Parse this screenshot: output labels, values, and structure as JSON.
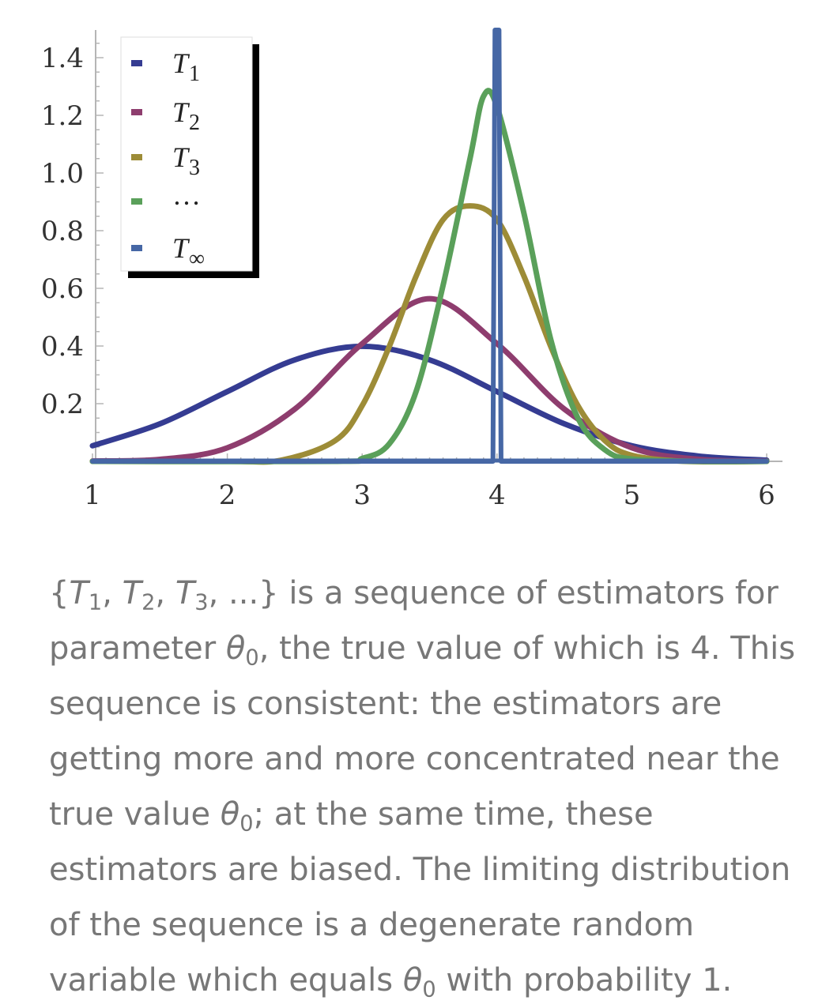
{
  "chart_data": {
    "type": "line",
    "xlim": [
      1,
      6
    ],
    "ylim": [
      0,
      1.5
    ],
    "x_ticks": [
      "1",
      "2",
      "3",
      "4",
      "5",
      "6"
    ],
    "y_ticks": [
      "0.2",
      "0.4",
      "0.6",
      "0.8",
      "1.0",
      "1.2",
      "1.4"
    ],
    "grid": false,
    "legend_position": "top-left",
    "series": [
      {
        "name": "T1",
        "legend": {
          "main": "T",
          "sub": "1"
        },
        "color": "#353c92",
        "x": [
          1.0,
          1.5,
          2.0,
          2.5,
          3.0,
          3.5,
          4.0,
          4.5,
          5.0,
          5.5,
          6.0
        ],
        "y": [
          0.054,
          0.13,
          0.242,
          0.352,
          0.399,
          0.352,
          0.242,
          0.13,
          0.054,
          0.018,
          0.004
        ]
      },
      {
        "name": "T2",
        "legend": {
          "main": "T",
          "sub": "2"
        },
        "color": "#8e3d6e",
        "x": [
          1.0,
          1.5,
          2.0,
          2.5,
          3.0,
          3.5,
          4.0,
          4.5,
          5.0,
          5.5,
          6.0
        ],
        "y": [
          0.001,
          0.007,
          0.047,
          0.181,
          0.408,
          0.564,
          0.408,
          0.181,
          0.047,
          0.007,
          0.001
        ]
      },
      {
        "name": "T3",
        "legend": {
          "main": "T",
          "sub": "3"
        },
        "color": "#9d8c37",
        "x": [
          2.0,
          2.4,
          2.8,
          3.0,
          3.2,
          3.4,
          3.6,
          3.8,
          4.0,
          4.2,
          4.4,
          4.6,
          4.8,
          5.0,
          5.4,
          6.0
        ],
        "y": [
          0.0,
          0.004,
          0.072,
          0.193,
          0.397,
          0.642,
          0.838,
          0.886,
          0.838,
          0.642,
          0.397,
          0.193,
          0.072,
          0.021,
          0.0,
          0.0
        ],
        "peak": {
          "x": 3.8,
          "y": 0.886
        }
      },
      {
        "name": "…",
        "legend": {
          "main": "…",
          "sub": ""
        },
        "color": "#5aa05a",
        "x": [
          2.8,
          3.0,
          3.2,
          3.4,
          3.6,
          3.8,
          3.9,
          4.0,
          4.2,
          4.4,
          4.6,
          4.8,
          5.0,
          5.5
        ],
        "y": [
          0.0,
          0.01,
          0.06,
          0.242,
          0.61,
          1.05,
          1.266,
          1.23,
          0.86,
          0.42,
          0.15,
          0.04,
          0.008,
          0.0
        ],
        "peak": {
          "x": 3.9,
          "y": 1.266
        }
      },
      {
        "name": "T∞",
        "legend": {
          "main": "T",
          "sub": "∞"
        },
        "color": "#4667a5",
        "spike_at": 4,
        "x": [
          1.0,
          3.97,
          3.985,
          4.0,
          4.015,
          4.03,
          6.0
        ],
        "y": [
          0.0,
          0.0,
          1.5,
          1.5,
          1.5,
          0.0,
          0.0
        ]
      }
    ]
  },
  "caption": {
    "segments": [
      {
        "t": "{",
        "s": "n"
      },
      {
        "t": "T",
        "s": "i"
      },
      {
        "t": "1",
        "s": "sub"
      },
      {
        "t": ", ",
        "s": "n"
      },
      {
        "t": "T",
        "s": "i"
      },
      {
        "t": "2",
        "s": "sub"
      },
      {
        "t": ", ",
        "s": "n"
      },
      {
        "t": "T",
        "s": "i"
      },
      {
        "t": "3",
        "s": "sub"
      },
      {
        "t": ", ...} is a sequence of estimators for parameter ",
        "s": "n"
      },
      {
        "t": "θ",
        "s": "i"
      },
      {
        "t": "0",
        "s": "sub"
      },
      {
        "t": ", the true value of which is 4. This sequence is consistent: the estimators are getting more and more concentrated near the true value ",
        "s": "n"
      },
      {
        "t": "θ",
        "s": "i"
      },
      {
        "t": "0",
        "s": "sub"
      },
      {
        "t": "; at the same time, these estimators are biased. The limiting distribution of the sequence is a degenerate random variable which equals ",
        "s": "n"
      },
      {
        "t": "θ",
        "s": "i"
      },
      {
        "t": "0",
        "s": "sub"
      },
      {
        "t": " with probability 1.",
        "s": "n"
      }
    ]
  }
}
